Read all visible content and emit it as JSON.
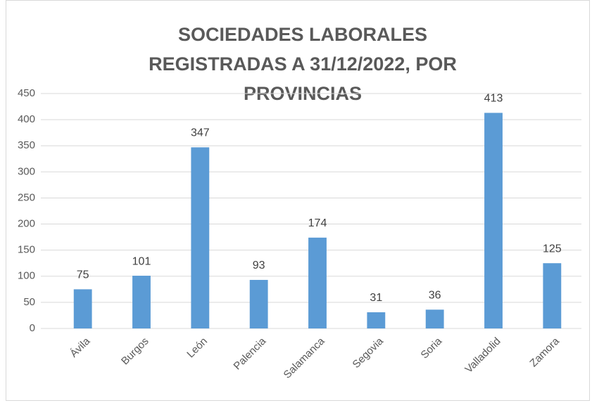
{
  "chart_data": {
    "type": "bar",
    "title": "SOCIEDADES LABORALES REGISTRADAS A 31/12/2022, POR PROVINCIAS",
    "categories": [
      "Ávila",
      "Burgos",
      "León",
      "Palencia",
      "Salamanca",
      "Segovia",
      "Soria",
      "Valladolid",
      "Zamora"
    ],
    "values": [
      75,
      101,
      347,
      93,
      174,
      31,
      36,
      413,
      125
    ],
    "color": "#5b9bd5",
    "ylim": [
      0,
      450
    ],
    "yticks": [
      0,
      50,
      100,
      150,
      200,
      250,
      300,
      350,
      400,
      450
    ],
    "grid": true
  }
}
